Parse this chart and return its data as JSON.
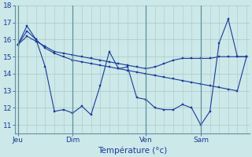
{
  "background_color": "#cce8e8",
  "grid_color": "#aac8c8",
  "line_color": "#1a3a9a",
  "vline_color": "#6090a0",
  "ylim": [
    10.5,
    18.0
  ],
  "xlabel": "Température (°c)",
  "x_tick_labels": [
    "Jeu",
    "Dim",
    "Ven",
    "Sam"
  ],
  "x_tick_positions": [
    0,
    6,
    14,
    20
  ],
  "total_points": 26,
  "series1": [
    15.7,
    16.8,
    16.0,
    14.4,
    11.8,
    11.9,
    11.7,
    12.1,
    11.6,
    13.3,
    15.3,
    14.3,
    14.4,
    12.6,
    12.5,
    12.0,
    11.9,
    11.9,
    12.2,
    12.0,
    11.0,
    11.8,
    15.8,
    17.2,
    15.0,
    15.0
  ],
  "series2": [
    15.7,
    16.2,
    15.9,
    15.6,
    15.3,
    15.2,
    15.1,
    15.0,
    14.9,
    14.8,
    14.7,
    14.6,
    14.5,
    14.4,
    14.3,
    14.4,
    14.6,
    14.8,
    14.9,
    14.9,
    14.9,
    14.9,
    15.0,
    15.0,
    15.0,
    15.0
  ],
  "series3": [
    15.7,
    16.5,
    16.0,
    15.5,
    15.2,
    15.0,
    14.8,
    14.7,
    14.6,
    14.5,
    14.4,
    14.3,
    14.2,
    14.1,
    14.0,
    13.9,
    13.8,
    13.7,
    13.6,
    13.5,
    13.4,
    13.3,
    13.2,
    13.1,
    13.0,
    15.0
  ]
}
